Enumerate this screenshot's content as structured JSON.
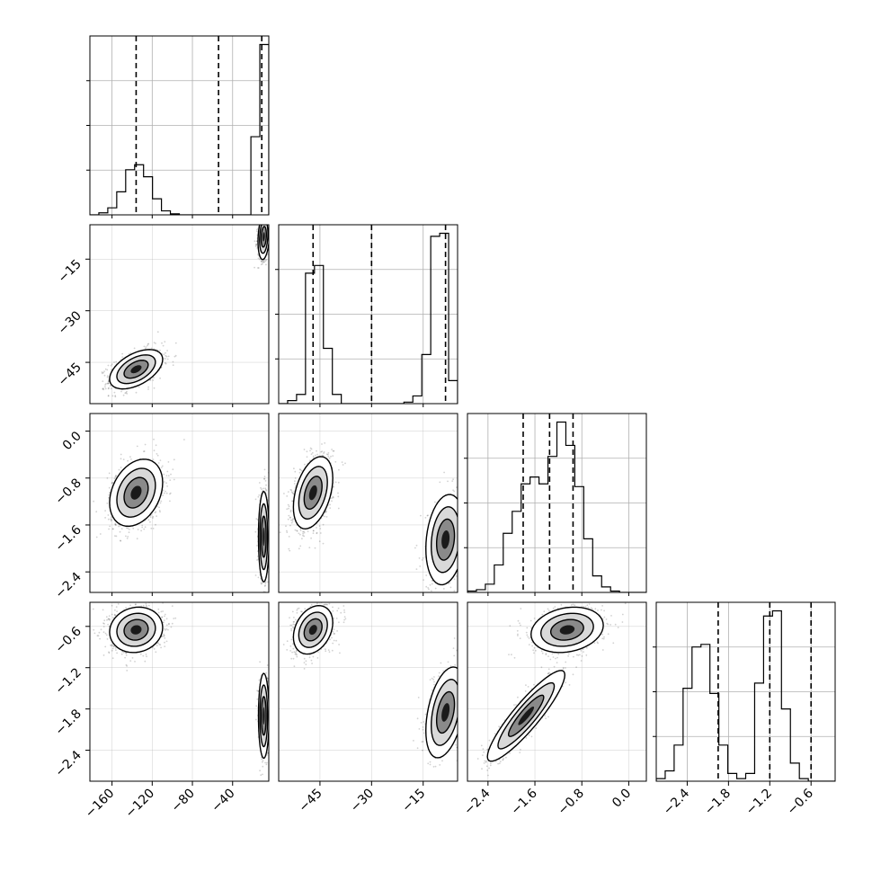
{
  "chart_data": {
    "type": "corner",
    "n_params": 4,
    "grid": true,
    "colors": {
      "line": "#000000",
      "grid": "#b0b0b0",
      "points": "#000000"
    },
    "params": [
      {
        "ticks": [
          -160,
          -120,
          -80,
          -40
        ],
        "tick_labels": [
          "−160",
          "−120",
          "−80",
          "−40"
        ],
        "xlim": [
          -182,
          -4
        ]
      },
      {
        "ticks": [
          -45,
          -30,
          -15
        ],
        "tick_labels": [
          "−45",
          "−30",
          "−15"
        ],
        "xlim": [
          -57,
          -5
        ]
      },
      {
        "ticks": [
          -2.4,
          -1.6,
          -0.8,
          0.0
        ],
        "tick_labels": [
          "−2.4",
          "−1.6",
          "−0.8",
          "0.0"
        ],
        "xlim": [
          -2.75,
          0.3
        ]
      },
      {
        "ticks": [
          -2.4,
          -1.8,
          -1.2,
          -0.6
        ],
        "tick_labels": [
          "−2.4",
          "−1.8",
          "−1.2",
          "−0.6"
        ],
        "xlim": [
          -2.85,
          -0.25
        ]
      }
    ],
    "row_ticks": [
      null,
      {
        "ticks": [
          -15,
          -30,
          -45
        ],
        "tick_labels": [
          "−15",
          "−30",
          "−45"
        ],
        "ylim": [
          -57,
          -5
        ]
      },
      {
        "ticks": [
          0.0,
          -0.8,
          -1.6,
          -2.4
        ],
        "tick_labels": [
          "0.0",
          "−0.8",
          "−1.6",
          "−2.4"
        ],
        "ylim": [
          -2.75,
          0.3
        ]
      },
      {
        "ticks": [
          -0.6,
          -1.2,
          -1.8,
          -2.4
        ],
        "tick_labels": [
          "−0.6",
          "−1.2",
          "−1.8",
          "−2.4"
        ],
        "ylim": [
          -2.85,
          -0.25
        ]
      }
    ],
    "histograms": [
      {
        "bins": 20,
        "range": [
          -182,
          -4
        ],
        "counts": [
          0,
          2,
          7,
          23,
          45,
          50,
          38,
          16,
          4,
          1,
          0,
          0,
          0,
          0,
          0,
          0,
          0,
          0,
          78,
          170
        ],
        "quantiles": [
          -136,
          -54,
          -11
        ]
      },
      {
        "bins": 20,
        "range": [
          -57,
          -5
        ],
        "counts": [
          0,
          2,
          6,
          85,
          90,
          36,
          6,
          0,
          0,
          0,
          0,
          0,
          0,
          0,
          1,
          5,
          32,
          109,
          111,
          15
        ],
        "quantiles": [
          -47,
          -30,
          -8.5
        ]
      },
      {
        "bins": 20,
        "range": [
          -2.75,
          0.3
        ],
        "counts": [
          1,
          2,
          6,
          20,
          43,
          59,
          79,
          84,
          79,
          99,
          124,
          107,
          77,
          39,
          12,
          4,
          1,
          0,
          0,
          0
        ],
        "quantiles": [
          -1.8,
          -1.35,
          -0.95
        ]
      },
      {
        "bins": 20,
        "range": [
          -2.85,
          -0.25
        ],
        "counts": [
          1,
          4,
          14,
          36,
          52,
          53,
          34,
          14,
          3,
          1,
          3,
          38,
          64,
          66,
          28,
          7,
          1,
          0,
          0,
          0
        ],
        "quantiles": [
          -1.95,
          -1.2,
          -0.6
        ]
      }
    ],
    "blobs": [
      [
        {
          "mx": -136,
          "my": -47.0,
          "sx": 12,
          "sy": 2.6,
          "rho": 0.5,
          "n": 950
        },
        {
          "mx": -9,
          "my": -8.5,
          "sx": 2.6,
          "sy": 3.0,
          "rho": 0.2,
          "n": 550
        }
      ],
      [
        {
          "mx": -136,
          "my": -1.05,
          "sx": 12,
          "sy": 0.26,
          "rho": 0.3,
          "n": 950
        },
        {
          "mx": -9,
          "my": -1.8,
          "sx": 2.4,
          "sy": 0.35,
          "rho": 0.0,
          "n": 550
        }
      ],
      [
        {
          "mx": -47,
          "my": -1.05,
          "sx": 2.6,
          "sy": 0.28,
          "rho": 0.4,
          "n": 950
        },
        {
          "mx": -8.5,
          "my": -1.85,
          "sx": 2.6,
          "sy": 0.35,
          "rho": 0.2,
          "n": 550
        }
      ],
      [
        {
          "mx": -136,
          "my": -0.65,
          "sx": 12,
          "sy": 0.15,
          "rho": 0.1,
          "n": 950
        },
        {
          "mx": -9,
          "my": -1.9,
          "sx": 2.4,
          "sy": 0.28,
          "rho": 0.0,
          "n": 550
        }
      ],
      [
        {
          "mx": -47,
          "my": -0.65,
          "sx": 2.6,
          "sy": 0.16,
          "rho": 0.3,
          "n": 950
        },
        {
          "mx": -8.5,
          "my": -1.85,
          "sx": 2.6,
          "sy": 0.3,
          "rho": 0.4,
          "n": 550
        }
      ],
      [
        {
          "mx": -1.05,
          "my": -0.65,
          "sx": 0.28,
          "sy": 0.15,
          "rho": 0.2,
          "n": 950
        },
        {
          "mx": -1.75,
          "my": -1.9,
          "sx": 0.3,
          "sy": 0.3,
          "rho": 0.9,
          "n": 550
        }
      ]
    ]
  }
}
